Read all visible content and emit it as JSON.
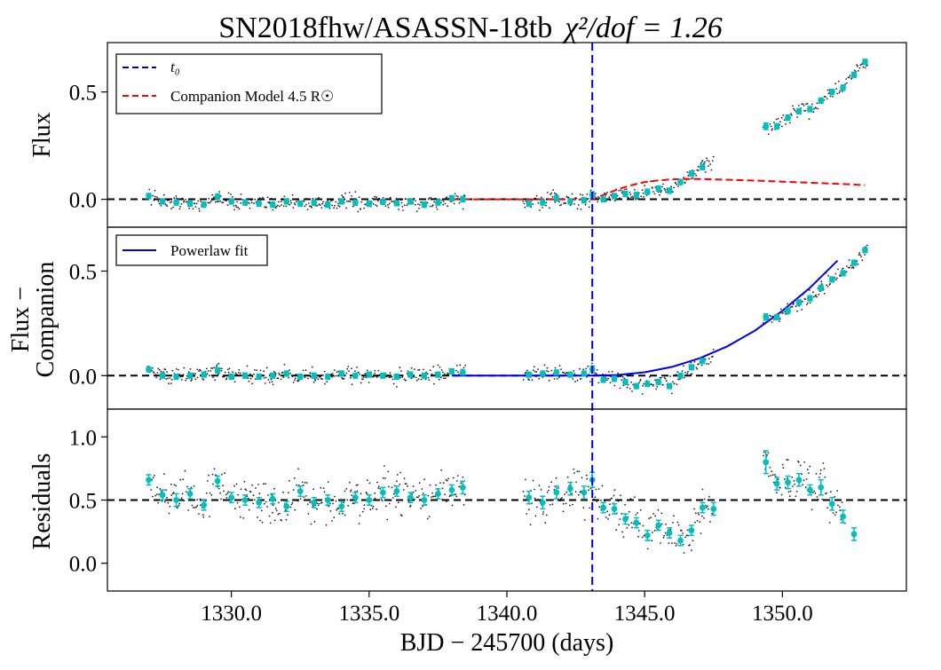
{
  "chart_data": {
    "type": "scatter",
    "title": "SN2018fhw/ASASSN-18tb",
    "title_stat": "χ²/dof = 1.26",
    "xlabel": "BJD − 245700 (days)",
    "xlim": [
      1325.5,
      1354.5
    ],
    "x_ticks": [
      1330.0,
      1335.0,
      1340.0,
      1345.0,
      1350.0
    ],
    "x_tick_labels": [
      "1330.0",
      "1335.0",
      "1340.0",
      "1345.0",
      "1350.0"
    ],
    "t0": 1343.1,
    "colors": {
      "raw": "#222222",
      "binned": "#00bfbf",
      "t0": "#0000cc",
      "companion": "#ff0000",
      "powerlaw": "#0000ee",
      "zero": "#000000"
    },
    "panels": [
      {
        "id": "flux",
        "ylabel": "Flux",
        "ylim": [
          -0.13,
          0.73
        ],
        "y_ticks": [
          0.0,
          0.5
        ],
        "y_tick_labels": [
          "0.0",
          "0.5"
        ],
        "hline": 0.0,
        "legend": [
          "t₀",
          "Companion Model  4.5  R☉"
        ],
        "companion_model": {
          "x": [
            1338.0,
            1339.0,
            1340.0,
            1341.0,
            1342.0,
            1343.1,
            1343.6,
            1344.0,
            1344.5,
            1345.0,
            1345.5,
            1346.0,
            1346.5,
            1347.0,
            1348.0,
            1349.0,
            1350.0,
            1351.0,
            1352.0,
            1353.0
          ],
          "y": [
            0.0,
            0.0,
            0.0,
            0.0,
            0.0,
            0.0,
            0.025,
            0.045,
            0.065,
            0.08,
            0.088,
            0.093,
            0.095,
            0.094,
            0.091,
            0.087,
            0.082,
            0.077,
            0.072,
            0.066
          ]
        },
        "binned": {
          "x": [
            1327.0,
            1327.5,
            1328.0,
            1328.5,
            1329.0,
            1329.5,
            1330.0,
            1330.5,
            1331.0,
            1331.5,
            1332.0,
            1332.5,
            1333.0,
            1333.5,
            1334.0,
            1334.5,
            1335.0,
            1335.5,
            1336.0,
            1336.5,
            1337.0,
            1337.5,
            1338.0,
            1338.4,
            1340.8,
            1341.3,
            1341.8,
            1342.3,
            1342.8,
            1343.1,
            1343.5,
            1343.9,
            1344.3,
            1344.7,
            1345.1,
            1345.5,
            1345.9,
            1346.3,
            1346.7,
            1347.1,
            1349.4,
            1349.8,
            1350.2,
            1350.6,
            1351.0,
            1351.4,
            1351.8,
            1352.2,
            1352.6,
            1353.0
          ],
          "y": [
            0.015,
            -0.01,
            -0.015,
            -0.02,
            -0.025,
            0.012,
            -0.01,
            -0.015,
            -0.02,
            -0.025,
            -0.01,
            -0.02,
            -0.015,
            -0.025,
            -0.01,
            -0.015,
            -0.02,
            -0.012,
            -0.018,
            -0.01,
            -0.025,
            -0.015,
            0.005,
            0.0,
            -0.02,
            -0.015,
            0.005,
            -0.01,
            -0.005,
            0.02,
            0.0,
            0.015,
            0.025,
            0.02,
            0.035,
            0.05,
            0.04,
            0.08,
            0.12,
            0.15,
            0.34,
            0.34,
            0.38,
            0.41,
            0.42,
            0.46,
            0.5,
            0.52,
            0.58,
            0.64
          ],
          "err": [
            0.012,
            0.012,
            0.012,
            0.012,
            0.012,
            0.012,
            0.012,
            0.012,
            0.012,
            0.012,
            0.012,
            0.012,
            0.012,
            0.012,
            0.012,
            0.012,
            0.012,
            0.012,
            0.012,
            0.012,
            0.012,
            0.012,
            0.012,
            0.012,
            0.012,
            0.012,
            0.012,
            0.012,
            0.012,
            0.015,
            0.012,
            0.012,
            0.012,
            0.012,
            0.012,
            0.012,
            0.012,
            0.012,
            0.012,
            0.012,
            0.015,
            0.012,
            0.012,
            0.012,
            0.012,
            0.012,
            0.012,
            0.012,
            0.012,
            0.012
          ]
        }
      },
      {
        "id": "flux-companion",
        "ylabel": "Flux −",
        "ylabel_line2": "Companion",
        "ylim": [
          -0.16,
          0.71
        ],
        "y_ticks": [
          0.0,
          0.5
        ],
        "y_tick_labels": [
          "0.0",
          "0.5"
        ],
        "hline": 0.0,
        "legend": [
          "Powerlaw fit"
        ],
        "powerlaw_fit": {
          "x": [
            1338.0,
            1339.0,
            1340.0,
            1341.0,
            1342.0,
            1343.1,
            1344.0,
            1345.0,
            1346.0,
            1347.0,
            1348.0,
            1349.0,
            1350.0,
            1351.0,
            1352.0
          ],
          "y": [
            0.0,
            0.0,
            0.0,
            0.0,
            0.0,
            0.0,
            0.003,
            0.016,
            0.042,
            0.083,
            0.14,
            0.215,
            0.31,
            0.42,
            0.55
          ]
        },
        "binned": {
          "x": [
            1327.0,
            1327.5,
            1328.0,
            1328.5,
            1329.0,
            1329.5,
            1330.0,
            1330.5,
            1331.0,
            1331.5,
            1332.0,
            1332.5,
            1333.0,
            1333.5,
            1334.0,
            1334.5,
            1335.0,
            1335.5,
            1336.0,
            1336.5,
            1337.0,
            1337.5,
            1338.0,
            1338.4,
            1340.8,
            1341.3,
            1341.8,
            1342.3,
            1342.8,
            1343.1,
            1343.5,
            1343.9,
            1344.3,
            1344.7,
            1345.1,
            1345.5,
            1345.9,
            1346.3,
            1346.7,
            1347.1,
            1349.4,
            1349.8,
            1350.2,
            1350.6,
            1351.0,
            1351.4,
            1351.8,
            1352.2,
            1352.6,
            1353.0
          ],
          "y": [
            0.03,
            0.0,
            -0.005,
            0.0,
            0.005,
            0.025,
            -0.005,
            0.0,
            -0.005,
            0.0,
            0.01,
            -0.005,
            0.0,
            -0.005,
            0.01,
            0.0,
            0.005,
            0.0,
            -0.005,
            0.005,
            0.0,
            0.005,
            0.02,
            0.015,
            0.005,
            0.01,
            0.015,
            0.005,
            0.01,
            0.03,
            -0.02,
            -0.015,
            -0.03,
            -0.05,
            -0.04,
            -0.03,
            -0.05,
            0.0,
            0.04,
            0.07,
            0.28,
            0.28,
            0.31,
            0.35,
            0.37,
            0.42,
            0.46,
            0.49,
            0.54,
            0.6
          ],
          "err": [
            0.012,
            0.012,
            0.012,
            0.012,
            0.012,
            0.012,
            0.012,
            0.012,
            0.012,
            0.012,
            0.012,
            0.012,
            0.012,
            0.012,
            0.012,
            0.012,
            0.012,
            0.012,
            0.012,
            0.012,
            0.012,
            0.012,
            0.012,
            0.012,
            0.012,
            0.012,
            0.012,
            0.012,
            0.012,
            0.015,
            0.012,
            0.012,
            0.012,
            0.012,
            0.012,
            0.012,
            0.012,
            0.012,
            0.012,
            0.012,
            0.015,
            0.012,
            0.012,
            0.012,
            0.012,
            0.012,
            0.012,
            0.012,
            0.012,
            0.012
          ]
        }
      },
      {
        "id": "residuals",
        "ylabel": "Residuals",
        "ylim": [
          -0.22,
          1.22
        ],
        "y_ticks": [
          0.0,
          0.5,
          1.0
        ],
        "y_tick_labels": [
          "0.0",
          "0.5",
          "1.0"
        ],
        "hline": 0.5,
        "binned": {
          "x": [
            1327.0,
            1327.5,
            1328.0,
            1328.5,
            1329.0,
            1329.5,
            1330.0,
            1330.5,
            1331.0,
            1331.5,
            1332.0,
            1332.5,
            1333.0,
            1333.5,
            1334.0,
            1334.5,
            1335.0,
            1335.5,
            1336.0,
            1336.5,
            1337.0,
            1337.5,
            1338.0,
            1338.4,
            1340.8,
            1341.3,
            1341.8,
            1342.3,
            1342.8,
            1343.1,
            1343.5,
            1343.9,
            1344.3,
            1344.7,
            1345.1,
            1345.5,
            1345.9,
            1346.3,
            1346.7,
            1347.1,
            1347.5,
            1349.4,
            1349.8,
            1350.2,
            1350.6,
            1351.0,
            1351.4,
            1351.8,
            1352.2,
            1352.6
          ],
          "y": [
            0.66,
            0.54,
            0.5,
            0.55,
            0.46,
            0.65,
            0.52,
            0.5,
            0.48,
            0.51,
            0.45,
            0.57,
            0.48,
            0.5,
            0.45,
            0.52,
            0.5,
            0.56,
            0.57,
            0.52,
            0.5,
            0.55,
            0.58,
            0.6,
            0.52,
            0.48,
            0.56,
            0.59,
            0.56,
            0.66,
            0.44,
            0.43,
            0.35,
            0.32,
            0.22,
            0.3,
            0.24,
            0.18,
            0.26,
            0.44,
            0.43,
            0.8,
            0.63,
            0.64,
            0.66,
            0.58,
            0.6,
            0.47,
            0.37,
            0.23
          ],
          "err": [
            0.04,
            0.04,
            0.05,
            0.04,
            0.04,
            0.04,
            0.04,
            0.04,
            0.04,
            0.04,
            0.04,
            0.04,
            0.04,
            0.04,
            0.04,
            0.04,
            0.04,
            0.04,
            0.04,
            0.04,
            0.04,
            0.04,
            0.04,
            0.05,
            0.05,
            0.05,
            0.05,
            0.05,
            0.05,
            0.06,
            0.04,
            0.04,
            0.04,
            0.04,
            0.04,
            0.04,
            0.04,
            0.04,
            0.04,
            0.04,
            0.05,
            0.09,
            0.05,
            0.05,
            0.05,
            0.04,
            0.06,
            0.05,
            0.05,
            0.05
          ]
        }
      }
    ]
  }
}
